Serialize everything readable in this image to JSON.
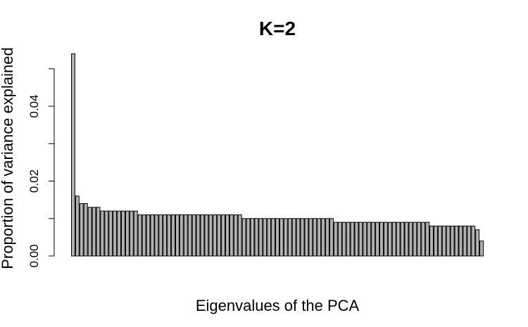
{
  "chart_data": {
    "type": "bar",
    "title": "K=2",
    "xlabel": "Eigenvalues of the PCA",
    "ylabel": "Proportion of variance explained",
    "ylim": [
      0,
      0.054
    ],
    "yticks": [
      0.0,
      0.01,
      0.02,
      0.03,
      0.04,
      0.05
    ],
    "ytick_labels": [
      "0.00",
      "",
      "0.02",
      "",
      "0.04",
      ""
    ],
    "grid": false,
    "bar_color": "#b3b3b3",
    "bar_border_color": "#000000",
    "values": [
      0.054,
      0.016,
      0.014,
      0.014,
      0.013,
      0.013,
      0.013,
      0.012,
      0.012,
      0.012,
      0.012,
      0.012,
      0.012,
      0.012,
      0.012,
      0.012,
      0.011,
      0.011,
      0.011,
      0.011,
      0.011,
      0.011,
      0.011,
      0.011,
      0.011,
      0.011,
      0.011,
      0.011,
      0.011,
      0.011,
      0.011,
      0.011,
      0.011,
      0.011,
      0.011,
      0.011,
      0.011,
      0.011,
      0.011,
      0.011,
      0.011,
      0.01,
      0.01,
      0.01,
      0.01,
      0.01,
      0.01,
      0.01,
      0.01,
      0.01,
      0.01,
      0.01,
      0.01,
      0.01,
      0.01,
      0.01,
      0.01,
      0.01,
      0.01,
      0.01,
      0.01,
      0.01,
      0.01,
      0.009,
      0.009,
      0.009,
      0.009,
      0.009,
      0.009,
      0.009,
      0.009,
      0.009,
      0.009,
      0.009,
      0.009,
      0.009,
      0.009,
      0.009,
      0.009,
      0.009,
      0.009,
      0.009,
      0.009,
      0.009,
      0.009,
      0.009,
      0.008,
      0.008,
      0.008,
      0.008,
      0.008,
      0.008,
      0.008,
      0.008,
      0.008,
      0.008,
      0.008,
      0.007,
      0.004
    ]
  }
}
